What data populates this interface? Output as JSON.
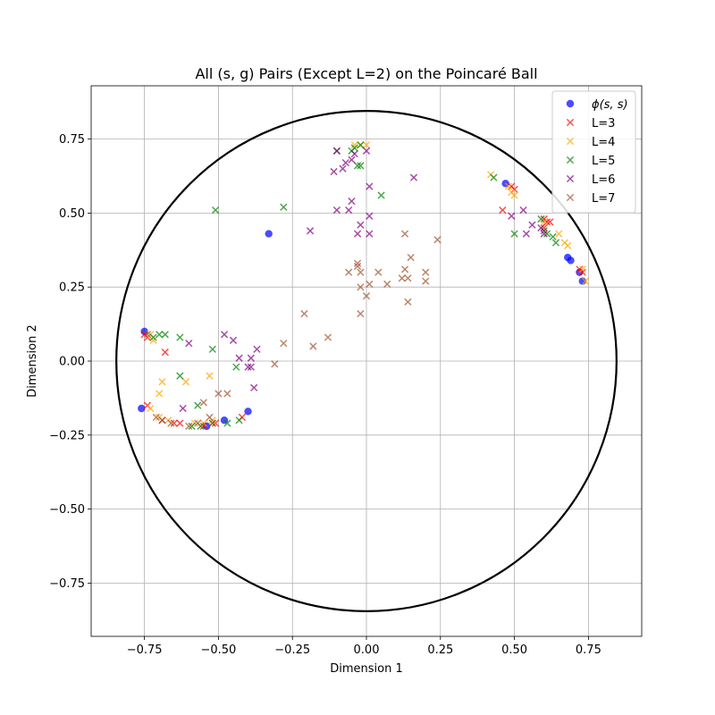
{
  "chart_data": {
    "type": "scatter",
    "title": "All (s, g) Pairs (Except L=2) on the Poincaré Ball",
    "xlabel": "Dimension 1",
    "ylabel": "Dimension 2",
    "xlim": [
      -0.93,
      0.93
    ],
    "ylim": [
      -0.93,
      0.93
    ],
    "xticks": [
      -0.75,
      -0.5,
      -0.25,
      0.0,
      0.25,
      0.5,
      0.75
    ],
    "yticks": [
      -0.75,
      -0.5,
      -0.25,
      0.0,
      0.25,
      0.5,
      0.75
    ],
    "xtick_labels": [
      "−0.75",
      "−0.50",
      "−0.25",
      "0.00",
      "0.25",
      "0.50",
      "0.75"
    ],
    "ytick_labels": [
      "−0.75",
      "−0.50",
      "−0.25",
      "0.00",
      "0.25",
      "0.50",
      "0.75"
    ],
    "grid": true,
    "legend_position": "top-right",
    "boundary_circle_radius": 0.845,
    "series": [
      {
        "name": "ϕ(s, s)",
        "label_main": "ϕ",
        "label_args": "(s, s)",
        "marker": "circle",
        "color": "#0000ff",
        "points": [
          [
            -0.75,
            0.1
          ],
          [
            -0.76,
            -0.16
          ],
          [
            -0.54,
            -0.22
          ],
          [
            -0.48,
            -0.2
          ],
          [
            -0.4,
            -0.17
          ],
          [
            -0.33,
            0.43
          ],
          [
            0.47,
            0.6
          ],
          [
            0.68,
            0.35
          ],
          [
            0.69,
            0.34
          ],
          [
            0.72,
            0.3
          ],
          [
            0.73,
            0.27
          ]
        ]
      },
      {
        "name": "L=3",
        "marker": "x",
        "color": "#ff0000",
        "points": [
          [
            -0.75,
            0.09
          ],
          [
            -0.74,
            0.08
          ],
          [
            -0.74,
            -0.15
          ],
          [
            -0.68,
            0.03
          ],
          [
            -0.69,
            -0.2
          ],
          [
            -0.65,
            -0.21
          ],
          [
            -0.63,
            -0.21
          ],
          [
            -0.55,
            -0.22
          ],
          [
            -0.51,
            -0.21
          ],
          [
            -0.42,
            -0.19
          ],
          [
            0.46,
            0.51
          ],
          [
            0.49,
            0.59
          ],
          [
            0.5,
            0.58
          ],
          [
            0.6,
            0.48
          ],
          [
            0.61,
            0.47
          ],
          [
            0.62,
            0.47
          ],
          [
            0.6,
            0.45
          ],
          [
            0.72,
            0.31
          ],
          [
            0.73,
            0.3
          ]
        ]
      },
      {
        "name": "L=4",
        "marker": "x",
        "color": "#ffa500",
        "points": [
          [
            -0.73,
            0.09
          ],
          [
            -0.72,
            0.07
          ],
          [
            -0.73,
            -0.16
          ],
          [
            -0.7,
            -0.11
          ],
          [
            -0.69,
            -0.07
          ],
          [
            -0.7,
            -0.19
          ],
          [
            -0.67,
            -0.2
          ],
          [
            -0.61,
            -0.07
          ],
          [
            -0.53,
            -0.05
          ],
          [
            -0.58,
            -0.21
          ],
          [
            -0.55,
            -0.21
          ],
          [
            -0.52,
            -0.2
          ],
          [
            -0.04,
            0.73
          ],
          [
            -0.02,
            0.73
          ],
          [
            0.0,
            0.73
          ],
          [
            0.42,
            0.63
          ],
          [
            0.48,
            0.59
          ],
          [
            0.49,
            0.57
          ],
          [
            0.5,
            0.56
          ],
          [
            0.6,
            0.47
          ],
          [
            0.65,
            0.43
          ],
          [
            0.67,
            0.4
          ],
          [
            0.68,
            0.39
          ],
          [
            0.73,
            0.31
          ],
          [
            0.74,
            0.27
          ]
        ]
      },
      {
        "name": "L=5",
        "marker": "x",
        "color": "#008000",
        "points": [
          [
            -0.72,
            0.08
          ],
          [
            -0.7,
            0.09
          ],
          [
            -0.68,
            0.09
          ],
          [
            -0.63,
            0.08
          ],
          [
            -0.63,
            -0.05
          ],
          [
            -0.57,
            -0.15
          ],
          [
            -0.52,
            0.04
          ],
          [
            -0.44,
            -0.02
          ],
          [
            -0.59,
            -0.22
          ],
          [
            -0.56,
            -0.22
          ],
          [
            -0.52,
            -0.21
          ],
          [
            -0.47,
            -0.21
          ],
          [
            -0.43,
            -0.2
          ],
          [
            -0.51,
            0.51
          ],
          [
            -0.28,
            0.52
          ],
          [
            -0.1,
            0.71
          ],
          [
            -0.05,
            0.71
          ],
          [
            -0.04,
            0.72
          ],
          [
            -0.02,
            0.73
          ],
          [
            -0.03,
            0.66
          ],
          [
            -0.02,
            0.66
          ],
          [
            0.05,
            0.56
          ],
          [
            0.43,
            0.62
          ],
          [
            0.5,
            0.43
          ],
          [
            0.59,
            0.48
          ],
          [
            0.6,
            0.44
          ],
          [
            0.61,
            0.43
          ],
          [
            0.63,
            0.42
          ],
          [
            0.64,
            0.4
          ]
        ]
      },
      {
        "name": "L=6",
        "marker": "x",
        "color": "#800080",
        "points": [
          [
            -0.62,
            -0.16
          ],
          [
            -0.6,
            0.06
          ],
          [
            -0.48,
            0.09
          ],
          [
            -0.45,
            0.07
          ],
          [
            -0.43,
            0.01
          ],
          [
            -0.4,
            -0.02
          ],
          [
            -0.39,
            0.01
          ],
          [
            -0.39,
            -0.02
          ],
          [
            -0.37,
            0.04
          ],
          [
            -0.38,
            -0.09
          ],
          [
            -0.19,
            0.44
          ],
          [
            -0.11,
            0.64
          ],
          [
            -0.1,
            0.71
          ],
          [
            -0.08,
            0.65
          ],
          [
            -0.07,
            0.67
          ],
          [
            -0.05,
            0.68
          ],
          [
            -0.04,
            0.7
          ],
          [
            -0.05,
            0.54
          ],
          [
            -0.06,
            0.51
          ],
          [
            -0.1,
            0.51
          ],
          [
            -0.03,
            0.43
          ],
          [
            -0.02,
            0.46
          ],
          [
            0.0,
            0.71
          ],
          [
            0.01,
            0.59
          ],
          [
            0.01,
            0.49
          ],
          [
            0.01,
            0.43
          ],
          [
            0.16,
            0.62
          ],
          [
            0.49,
            0.49
          ],
          [
            0.53,
            0.51
          ],
          [
            0.54,
            0.43
          ],
          [
            0.56,
            0.46
          ],
          [
            0.59,
            0.45
          ],
          [
            0.6,
            0.43
          ]
        ]
      },
      {
        "name": "L=7",
        "marker": "x",
        "color": "#a0522d",
        "points": [
          [
            -0.74,
            0.09
          ],
          [
            -0.71,
            -0.19
          ],
          [
            -0.69,
            -0.2
          ],
          [
            -0.66,
            -0.21
          ],
          [
            -0.6,
            -0.22
          ],
          [
            -0.57,
            -0.21
          ],
          [
            -0.55,
            -0.14
          ],
          [
            -0.53,
            -0.19
          ],
          [
            -0.52,
            -0.21
          ],
          [
            -0.5,
            -0.11
          ],
          [
            -0.47,
            -0.11
          ],
          [
            -0.31,
            -0.01
          ],
          [
            -0.28,
            0.06
          ],
          [
            -0.21,
            0.16
          ],
          [
            -0.18,
            0.05
          ],
          [
            -0.13,
            0.08
          ],
          [
            -0.06,
            0.3
          ],
          [
            -0.03,
            0.32
          ],
          [
            -0.03,
            0.33
          ],
          [
            -0.02,
            0.3
          ],
          [
            -0.02,
            0.25
          ],
          [
            -0.02,
            0.16
          ],
          [
            0.0,
            0.22
          ],
          [
            0.01,
            0.26
          ],
          [
            0.04,
            0.3
          ],
          [
            0.07,
            0.26
          ],
          [
            0.12,
            0.28
          ],
          [
            0.13,
            0.43
          ],
          [
            0.13,
            0.31
          ],
          [
            0.14,
            0.28
          ],
          [
            0.15,
            0.35
          ],
          [
            0.14,
            0.2
          ],
          [
            0.2,
            0.3
          ],
          [
            0.2,
            0.27
          ],
          [
            0.24,
            0.41
          ]
        ]
      }
    ]
  }
}
